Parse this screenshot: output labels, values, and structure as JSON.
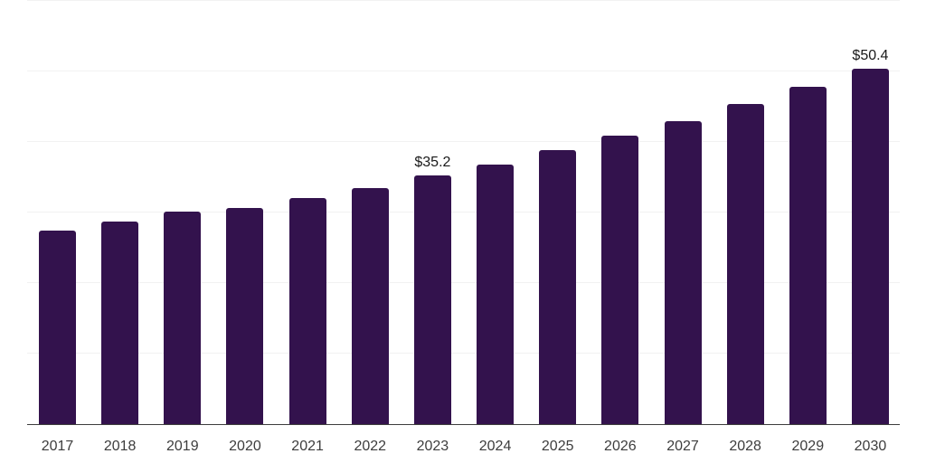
{
  "chart_data": {
    "type": "bar",
    "title": "",
    "xlabel": "",
    "ylabel": "",
    "categories": [
      "2017",
      "2018",
      "2019",
      "2020",
      "2021",
      "2022",
      "2023",
      "2024",
      "2025",
      "2026",
      "2027",
      "2028",
      "2029",
      "2030"
    ],
    "values": [
      27.5,
      28.7,
      30.1,
      30.7,
      32.0,
      33.4,
      35.2,
      36.8,
      38.8,
      40.9,
      42.9,
      45.4,
      47.8,
      50.4
    ],
    "data_labels": [
      {
        "category": "2023",
        "text": "$35.2"
      },
      {
        "category": "2030",
        "text": "$50.4"
      }
    ],
    "ylim": [
      0,
      60
    ],
    "gridline_step": 10,
    "grid": "horizontal",
    "legend": "none",
    "colors": {
      "bar": "#33124d",
      "gridline": "#f2f2f2",
      "axis_line": "#3d3d3d",
      "tick_label": "#3d3d3d",
      "data_label": "#1a1a1a",
      "background": "#ffffff"
    }
  }
}
